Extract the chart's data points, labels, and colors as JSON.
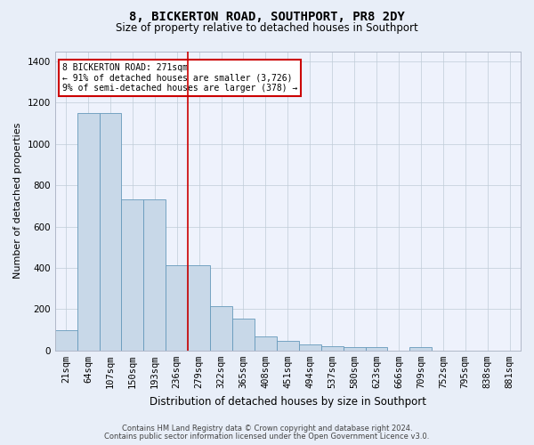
{
  "title": "8, BICKERTON ROAD, SOUTHPORT, PR8 2DY",
  "subtitle": "Size of property relative to detached houses in Southport",
  "xlabel": "Distribution of detached houses by size in Southport",
  "ylabel": "Number of detached properties",
  "categories": [
    "21sqm",
    "64sqm",
    "107sqm",
    "150sqm",
    "193sqm",
    "236sqm",
    "279sqm",
    "322sqm",
    "365sqm",
    "408sqm",
    "451sqm",
    "494sqm",
    "537sqm",
    "580sqm",
    "623sqm",
    "666sqm",
    "709sqm",
    "752sqm",
    "795sqm",
    "838sqm",
    "881sqm"
  ],
  "bar_heights": [
    100,
    1150,
    1150,
    730,
    730,
    415,
    415,
    215,
    155,
    70,
    45,
    30,
    20,
    15,
    15,
    0,
    15,
    0,
    0,
    0,
    0
  ],
  "bar_color": "#c8d8e8",
  "bar_edge_color": "#6699bb",
  "property_line_index": 6.0,
  "annotation_line1": "8 BICKERTON ROAD: 271sqm",
  "annotation_line2": "← 91% of detached houses are smaller (3,726)",
  "annotation_line3": "9% of semi-detached houses are larger (378) →",
  "annotation_box_edgecolor": "#cc0000",
  "vline_color": "#cc0000",
  "ylim": [
    0,
    1450
  ],
  "yticks": [
    0,
    200,
    400,
    600,
    800,
    1000,
    1200,
    1400
  ],
  "bg_color": "#e8eef8",
  "plot_bg_color": "#eef2fc",
  "grid_color": "#c0ccd8",
  "footer_line1": "Contains HM Land Registry data © Crown copyright and database right 2024.",
  "footer_line2": "Contains public sector information licensed under the Open Government Licence v3.0.",
  "title_fontsize": 10,
  "subtitle_fontsize": 8.5,
  "ylabel_fontsize": 8,
  "xlabel_fontsize": 8.5,
  "tick_fontsize": 7.5,
  "annotation_fontsize": 7
}
